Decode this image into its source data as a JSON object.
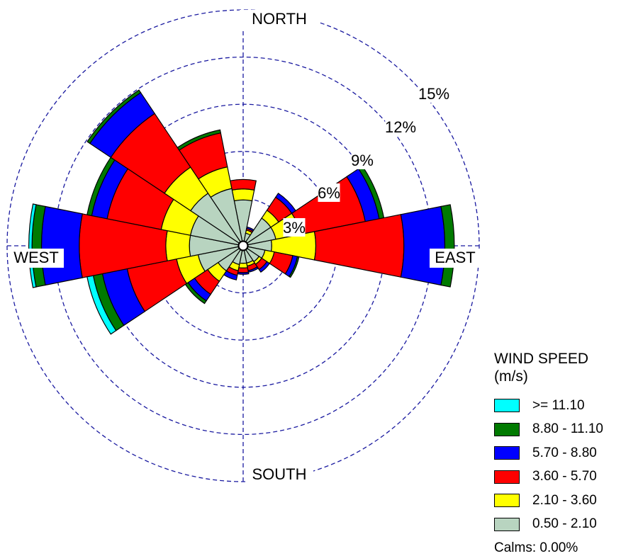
{
  "chart_data": {
    "type": "wind-rose",
    "directions": [
      "N",
      "NNE",
      "NE",
      "ENE",
      "E",
      "ESE",
      "SE",
      "SSE",
      "S",
      "SSW",
      "SW",
      "WSW",
      "W",
      "WNW",
      "NW",
      "NNW"
    ],
    "compass_labels": {
      "north": "NORTH",
      "east": "EAST",
      "south": "SOUTH",
      "west": "WEST"
    },
    "rings": [
      3,
      6,
      9,
      12,
      15
    ],
    "ring_labels": [
      "3%",
      "6%",
      "9%",
      "12%",
      "15%"
    ],
    "bins": [
      {
        "label": "0.50 - 2.10",
        "color": "#b8d4c0"
      },
      {
        "label": "2.10 - 3.60",
        "color": "#ffff00"
      },
      {
        "label": "3.60 - 5.70",
        "color": "#ff0000"
      },
      {
        "label": "5.70 - 8.80",
        "color": "#0000ff"
      },
      {
        "label": "8.80 - 11.10",
        "color": "#007a00"
      },
      {
        "label": ">= 11.10",
        "color": "#00ffff"
      }
    ],
    "values": {
      "N": [
        2.6,
        0.7,
        0.6,
        0,
        0,
        0
      ],
      "NNE": [
        0.5,
        0.2,
        0.1,
        0.1,
        0,
        0
      ],
      "NE": [
        1.8,
        0.6,
        1.0,
        0.3,
        0,
        0
      ],
      "ENE": [
        1.8,
        1.6,
        4.2,
        0.9,
        0.3,
        0
      ],
      "E": [
        1.5,
        2.8,
        5.6,
        2.6,
        0.6,
        0
      ],
      "ESE": [
        1.1,
        0.6,
        1.2,
        0.3,
        0.1,
        0
      ],
      "SE": [
        0.9,
        0.2,
        0.4,
        0.2,
        0,
        0
      ],
      "SSE": [
        0.8,
        0.2,
        0.3,
        0.1,
        0,
        0
      ],
      "S": [
        0.8,
        0.3,
        0.3,
        0.1,
        0,
        0
      ],
      "SSW": [
        0.9,
        0.4,
        0.3,
        0.3,
        0,
        0
      ],
      "SW": [
        1.6,
        0.8,
        1.0,
        0.5,
        0.2,
        0
      ],
      "WSW": [
        2.6,
        1.4,
        3.2,
        1.6,
        0.6,
        0.4
      ],
      "W": [
        3.1,
        1.5,
        5.5,
        2.4,
        0.6,
        0.2
      ],
      "WNW": [
        3.1,
        1.9,
        3.5,
        1.0,
        0.3,
        0
      ],
      "NW": [
        3.7,
        2.0,
        4.1,
        1.6,
        0.2,
        0
      ],
      "NNW": [
        3.4,
        1.4,
        2.2,
        0,
        0.2,
        0
      ]
    },
    "grid": true,
    "legend_position": "bottom-right"
  },
  "legend": {
    "title_line1": "WIND SPEED",
    "title_line2": "(m/s)",
    "calms": "Calms: 0.00%"
  }
}
